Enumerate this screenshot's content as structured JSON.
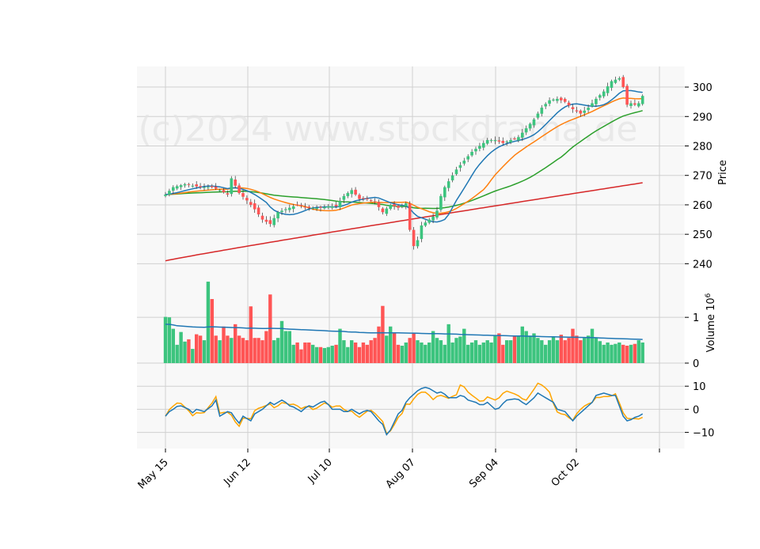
{
  "chart_data": {
    "type": "candlestick",
    "watermark": "(c)2024 www.stockdrama.de",
    "x_tick_labels": [
      "May 15",
      "Jun 12",
      "Jul 10",
      "Aug 07",
      "Sep 04",
      "Oct 02"
    ],
    "colors": {
      "up": "#3cc47e",
      "down": "#ff5555",
      "sma_short": "#1f77b4",
      "sma_mid": "#ff7f0e",
      "sma_long": "#2ca02c",
      "sma_200": "#d62728",
      "volume_avg": "#1f77b4",
      "osc_a": "#1f77b4",
      "osc_b": "#ffa500",
      "grid": "#d0d0d0",
      "panel_bg": "#f8f8f8"
    },
    "price_panel": {
      "ylabel": "Price",
      "ylim": [
        235,
        307
      ],
      "yticks": [
        240,
        250,
        260,
        270,
        280,
        290,
        300
      ],
      "anchors": [
        [
          0,
          263.5
        ],
        [
          2,
          266
        ],
        [
          5,
          267
        ],
        [
          9,
          266
        ],
        [
          12,
          266
        ],
        [
          14,
          265
        ],
        [
          16,
          263.5
        ],
        [
          17,
          269
        ],
        [
          19,
          264
        ],
        [
          21,
          261.5
        ],
        [
          23,
          258.5
        ],
        [
          25,
          255
        ],
        [
          27,
          253.5
        ],
        [
          29,
          257.5
        ],
        [
          31,
          258.5
        ],
        [
          34,
          260
        ],
        [
          37,
          259
        ],
        [
          40,
          259
        ],
        [
          42,
          259.5
        ],
        [
          44,
          259.5
        ],
        [
          46,
          263
        ],
        [
          48,
          265
        ],
        [
          50,
          262
        ],
        [
          52,
          262
        ],
        [
          54,
          261
        ],
        [
          56,
          257.5
        ],
        [
          58,
          260
        ],
        [
          60,
          259
        ],
        [
          62,
          260.5
        ],
        [
          63,
          251.5
        ],
        [
          64,
          246
        ],
        [
          65,
          248
        ],
        [
          66,
          253
        ],
        [
          67,
          254
        ],
        [
          68,
          255
        ],
        [
          69,
          256
        ],
        [
          70,
          258
        ],
        [
          71,
          263
        ],
        [
          72,
          266
        ],
        [
          73,
          268
        ],
        [
          75,
          272
        ],
        [
          77,
          275
        ],
        [
          79,
          278
        ],
        [
          81,
          280
        ],
        [
          83,
          282
        ],
        [
          85,
          282
        ],
        [
          87,
          281
        ],
        [
          89,
          282
        ],
        [
          91,
          283
        ],
        [
          93,
          286
        ],
        [
          95,
          289
        ],
        [
          97,
          293
        ],
        [
          99,
          295.5
        ],
        [
          101,
          296
        ],
        [
          103,
          295
        ],
        [
          105,
          292.5
        ],
        [
          107,
          291
        ],
        [
          109,
          293
        ],
        [
          111,
          296
        ],
        [
          113,
          298.5
        ],
        [
          115,
          302
        ],
        [
          117,
          303
        ],
        [
          118,
          300
        ],
        [
          119,
          294
        ],
        [
          120,
          294.5
        ],
        [
          121,
          294
        ],
        [
          122,
          294.5
        ],
        [
          123,
          297
        ]
      ]
    },
    "volume_panel": {
      "ylabel": "Volume  10^6",
      "ylim": [
        0,
        1.85
      ],
      "yticks": [
        0,
        1
      ],
      "values": [
        1.01,
        1.0,
        0.75,
        0.4,
        0.68,
        0.47,
        0.52,
        0.31,
        0.63,
        0.6,
        0.5,
        1.78,
        1.4,
        0.6,
        0.5,
        0.8,
        0.6,
        0.55,
        0.85,
        0.6,
        0.55,
        0.5,
        1.24,
        0.55,
        0.55,
        0.5,
        0.7,
        1.5,
        0.5,
        0.55,
        0.92,
        0.7,
        0.7,
        0.4,
        0.45,
        0.3,
        0.45,
        0.45,
        0.4,
        0.35,
        0.35,
        0.33,
        0.35,
        0.38,
        0.4,
        0.75,
        0.5,
        0.35,
        0.5,
        0.45,
        0.35,
        0.45,
        0.4,
        0.5,
        0.55,
        0.8,
        1.25,
        0.6,
        0.8,
        0.65,
        0.4,
        0.38,
        0.45,
        0.55,
        0.65,
        0.5,
        0.45,
        0.4,
        0.45,
        0.7,
        0.55,
        0.5,
        0.4,
        0.85,
        0.45,
        0.55,
        0.58,
        0.75,
        0.4,
        0.45,
        0.5,
        0.4,
        0.45,
        0.5,
        0.45,
        0.6,
        0.65,
        0.4,
        0.5,
        0.5,
        0.6,
        0.58,
        0.8,
        0.7,
        0.6,
        0.65,
        0.55,
        0.5,
        0.4,
        0.5,
        0.58,
        0.5,
        0.62,
        0.5,
        0.55,
        0.75,
        0.6,
        0.5,
        0.55,
        0.6,
        0.75,
        0.55,
        0.48,
        0.4,
        0.45,
        0.4,
        0.42,
        0.45,
        0.4,
        0.38,
        0.4,
        0.42,
        0.5,
        0.45
      ]
    },
    "oscillator_panel": {
      "ylim": [
        -17,
        20
      ],
      "yticks": [
        -10,
        0,
        10
      ],
      "line_a_anchors": [
        [
          0,
          -3
        ],
        [
          1,
          -1
        ],
        [
          3,
          1
        ],
        [
          5,
          1.5
        ],
        [
          7,
          0
        ],
        [
          8,
          -1.5
        ],
        [
          10,
          0
        ],
        [
          12,
          -1
        ],
        [
          14,
          1.5
        ],
        [
          16,
          4
        ],
        [
          17,
          -3
        ],
        [
          19,
          -1
        ],
        [
          21,
          -2
        ],
        [
          23,
          -6
        ],
        [
          24,
          -3
        ],
        [
          26,
          -5
        ],
        [
          28,
          -2
        ],
        [
          30,
          0
        ],
        [
          32,
          3
        ],
        [
          34,
          2
        ],
        [
          36,
          4
        ],
        [
          38,
          2
        ],
        [
          40,
          1
        ],
        [
          42,
          -1
        ],
        [
          44,
          2
        ],
        [
          46,
          1
        ],
        [
          48,
          3
        ],
        [
          50,
          4
        ],
        [
          52,
          0
        ],
        [
          54,
          0
        ],
        [
          56,
          -2
        ],
        [
          58,
          0
        ],
        [
          60,
          -2
        ],
        [
          62,
          0
        ],
        [
          64,
          -1
        ],
        [
          66,
          -5
        ],
        [
          68,
          -8
        ],
        [
          69,
          -11
        ],
        [
          70,
          -9
        ],
        [
          72,
          -2
        ],
        [
          74,
          1
        ],
        [
          76,
          5
        ],
        [
          78,
          8
        ],
        [
          80,
          10
        ],
        [
          82,
          9
        ],
        [
          84,
          7
        ],
        [
          86,
          8
        ],
        [
          88,
          5
        ],
        [
          90,
          5
        ],
        [
          92,
          7
        ],
        [
          94,
          4
        ],
        [
          96,
          3
        ],
        [
          98,
          1
        ],
        [
          100,
          3
        ],
        [
          102,
          0
        ],
        [
          104,
          1
        ],
        [
          106,
          4
        ],
        [
          108,
          4.5
        ],
        [
          110,
          4
        ],
        [
          112,
          2
        ],
        [
          114,
          5
        ],
        [
          116,
          7
        ],
        [
          118,
          5
        ],
        [
          120,
          3
        ],
        [
          122,
          0
        ],
        [
          124,
          -1
        ],
        [
          126,
          -5
        ],
        [
          128,
          -3
        ],
        [
          130,
          0
        ],
        [
          132,
          3
        ],
        [
          134,
          6
        ],
        [
          136,
          7
        ],
        [
          138,
          6
        ],
        [
          140,
          6
        ],
        [
          142,
          -3
        ],
        [
          143,
          -5
        ],
        [
          145,
          -4
        ],
        [
          147,
          -3
        ],
        [
          148,
          -2
        ]
      ]
    },
    "ma_panel_extra": {
      "sma_200_range": [
        241,
        267.5
      ]
    }
  }
}
